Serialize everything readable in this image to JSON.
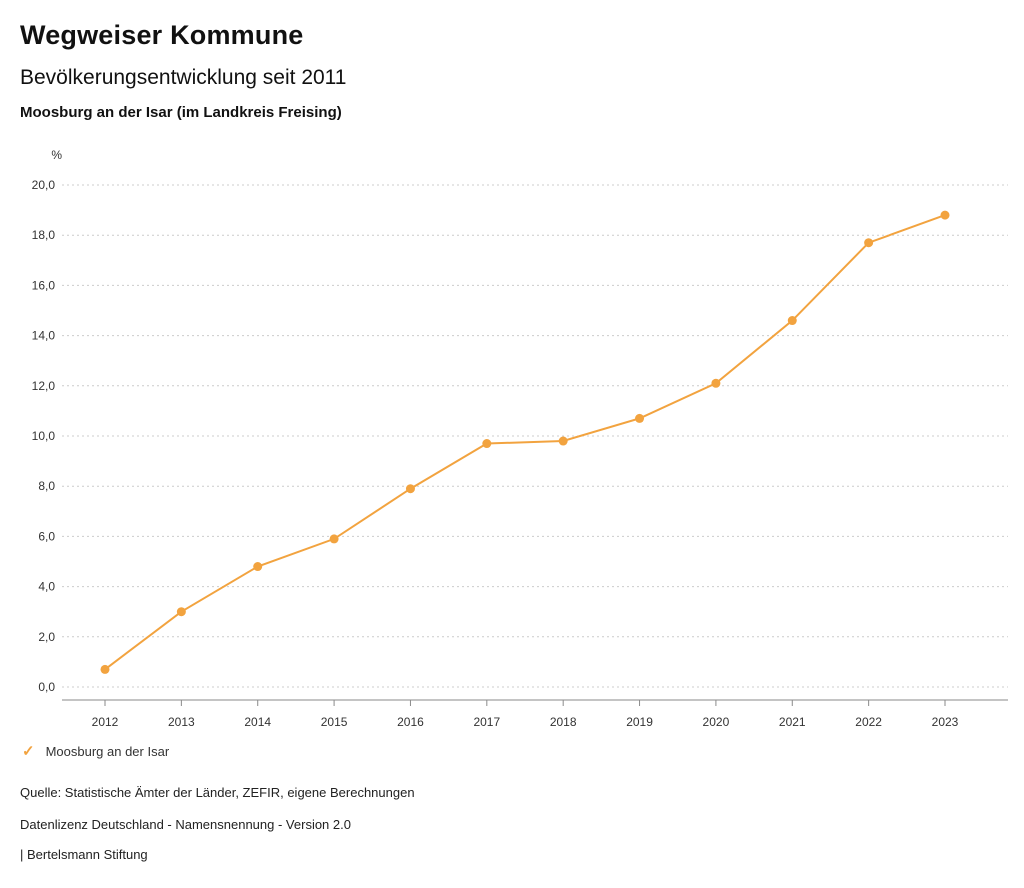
{
  "header": {
    "title": "Wegweiser Kommune",
    "subtitle": "Bevölkerungsentwicklung seit 2011",
    "region": "Moosburg an der Isar (im Landkreis Freising)"
  },
  "chart_data": {
    "type": "line",
    "title": "Bevölkerungsentwicklung seit 2011",
    "unit_label": "%",
    "categories": [
      "2012",
      "2013",
      "2014",
      "2015",
      "2016",
      "2017",
      "2018",
      "2019",
      "2020",
      "2021",
      "2022",
      "2023"
    ],
    "series": [
      {
        "name": "Moosburg an der Isar",
        "values": [
          0.7,
          3.0,
          4.8,
          5.9,
          7.9,
          9.7,
          9.8,
          10.7,
          12.1,
          14.6,
          17.7,
          18.8
        ],
        "color": "#F2A33F"
      }
    ],
    "ylim": [
      0,
      20
    ],
    "ytick_step": 2,
    "ytick_labels": [
      "0,0",
      "2,0",
      "4,0",
      "6,0",
      "8,0",
      "10,0",
      "12,0",
      "14,0",
      "16,0",
      "18,0",
      "20,0"
    ],
    "grid": "dotted-horizontal",
    "legend_position": "bottom-left"
  },
  "legend": {
    "check_icon": "✓",
    "label": "Moosburg an der Isar"
  },
  "footer": {
    "source": "Quelle: Statistische Ämter der Länder, ZEFIR, eigene Berechnungen",
    "license": "Datenlizenz Deutschland - Namensnennung - Version 2.0",
    "brand": "| Bertelsmann Stiftung"
  },
  "colors": {
    "accent": "#F2A33F",
    "grid": "#CCCCCC",
    "axis": "#8A8A8A",
    "text": "#333333"
  }
}
